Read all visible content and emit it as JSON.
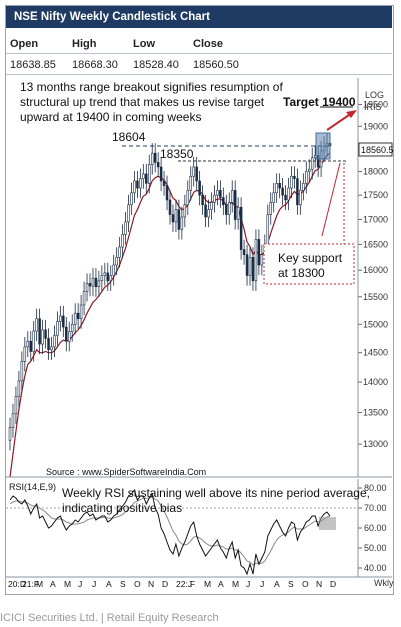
{
  "title": "NSE Nifty Weekly Candlestick Chart",
  "ohlc": {
    "headers": [
      "Open",
      "High",
      "Low",
      "Close"
    ],
    "values": [
      "18638.85",
      "18668.30",
      "18528.40",
      "18560.50"
    ]
  },
  "annotations": {
    "breakout_text": [
      "13 months range breakout signifies resumption of",
      "structural up trend that makes us revise target",
      "upward at 19400 in coming weeks"
    ],
    "target": "Target 19400",
    "level_18604": "18604",
    "level_18350": "18350",
    "key_support": [
      "Key   support",
      "at 18300"
    ],
    "source": "Source : www.SpiderSoftwareIndia.Com",
    "rsi_text": [
      "Weekly RSI sustaining well above its nine period average,",
      "indicating positive bias"
    ],
    "log": "LOG",
    "iris": "IRIS",
    "wk": "Wkly",
    "last_price": "18560.5"
  },
  "footer": "ICICI Securities Ltd. | Retail Equity Research",
  "chart_data": [
    {
      "type": "candlestick",
      "title": "NSE Nifty Weekly Candlestick Chart",
      "yscale": "log",
      "ylim": [
        12500,
        19700
      ],
      "y_ticks": [
        13000,
        13500,
        14000,
        14500,
        15000,
        15500,
        16000,
        16500,
        17000,
        17500,
        18000,
        18500,
        19000,
        19500
      ],
      "x_tick_labels": [
        "20:D",
        "21:F",
        "M",
        "A",
        "M",
        "J",
        "J",
        "A",
        "S",
        "O",
        "N",
        "D",
        "22:J",
        "F",
        "M",
        "A",
        "M",
        "J",
        "J",
        "A",
        "S",
        "O",
        "N",
        "D"
      ],
      "series": [
        {
          "name": "Nifty",
          "values": [
            13260,
            13480,
            13760,
            14020,
            14350,
            14600,
            14700,
            14520,
            14880,
            15100,
            14650,
            14900,
            14750,
            14550,
            14600,
            14800,
            15050,
            15150,
            14950,
            14700,
            14870,
            15000,
            15200,
            15100,
            15350,
            15600,
            15750,
            15700,
            15850,
            15690,
            15800,
            15900,
            15950,
            15800,
            15900,
            16100,
            16250,
            16450,
            16700,
            16950,
            17300,
            17550,
            17800,
            17650,
            17850,
            17950,
            17750,
            18150,
            18400,
            18200,
            18100,
            17800,
            17700,
            17400,
            17100,
            16950,
            17200,
            16800,
            17050,
            17300,
            17600,
            17900,
            18100,
            17800,
            17500,
            17300,
            17050,
            17200,
            17350,
            17500,
            17600,
            17450,
            17300,
            17100,
            17350,
            17600,
            17000,
            17250,
            16400,
            16300,
            15900,
            16250,
            15800,
            16600,
            16100,
            16300,
            16500,
            17100,
            17350,
            17550,
            17750,
            17650,
            17500,
            17400,
            17650,
            17900,
            17850,
            17300,
            17600,
            17750,
            18000,
            18050,
            18300,
            18350,
            18100,
            18450,
            18550,
            18620,
            18560
          ]
        },
        {
          "name": "Moving average",
          "values": [
            12500,
            12850,
            13200,
            13550,
            13850,
            14100,
            14300,
            14350,
            14450,
            14550,
            14500,
            14500,
            14520,
            14500,
            14500,
            14530,
            14600,
            14680,
            14720,
            14700,
            14720,
            14780,
            14850,
            14900,
            14980,
            15080,
            15200,
            15300,
            15400,
            15450,
            15520,
            15600,
            15680,
            15720,
            15780,
            15870,
            15980,
            16100,
            16260,
            16430,
            16640,
            16860,
            17080,
            17200,
            17350,
            17480,
            17520,
            17650,
            17800,
            17870,
            17900,
            17870,
            17820,
            17720,
            17580,
            17440,
            17390,
            17260,
            17200,
            17220,
            17300,
            17420,
            17560,
            17600,
            17580,
            17520,
            17400,
            17350,
            17350,
            17380,
            17420,
            17420,
            17380,
            17300,
            17300,
            17360,
            17260,
            17260,
            17020,
            16800,
            16550,
            16460,
            16300,
            16380,
            16300,
            16300,
            16350,
            16530,
            16720,
            16900,
            17070,
            17200,
            17270,
            17300,
            17380,
            17500,
            17580,
            17510,
            17530,
            17580,
            17680,
            17770,
            17900,
            18020,
            18050,
            18150,
            18250,
            18350,
            18400
          ]
        }
      ]
    },
    {
      "type": "line",
      "title": "RSI(14,E,9)",
      "ylim": [
        36,
        84
      ],
      "y_ticks": [
        40,
        50,
        60,
        70,
        80
      ],
      "series": [
        {
          "name": "RSI",
          "values": [
            74,
            76,
            75,
            73,
            72,
            74,
            71,
            67,
            70,
            72,
            65,
            66,
            63,
            60,
            61,
            63,
            65,
            66,
            62,
            59,
            61,
            62,
            64,
            63,
            65,
            67,
            68,
            66,
            67,
            64,
            65,
            66,
            66,
            63,
            64,
            66,
            67,
            69,
            71,
            73,
            76,
            77,
            79,
            74,
            76,
            76,
            72,
            75,
            77,
            70,
            67,
            60,
            57,
            53,
            49,
            47,
            52,
            46,
            50,
            53,
            57,
            61,
            63,
            56,
            52,
            49,
            46,
            48,
            50,
            52,
            54,
            50,
            48,
            45,
            50,
            53,
            45,
            49,
            41,
            40,
            37,
            42,
            37,
            47,
            42,
            45,
            48,
            56,
            59,
            62,
            64,
            61,
            58,
            56,
            60,
            63,
            62,
            54,
            58,
            60,
            63,
            64,
            66,
            66,
            61,
            65,
            67,
            68,
            66
          ]
        },
        {
          "name": "RSI average",
          "values": [
            72,
            73,
            73.5,
            73.5,
            73,
            73,
            72.5,
            71.5,
            71,
            71,
            70,
            69,
            68,
            66.5,
            65,
            64.5,
            64.5,
            64.5,
            64,
            63,
            62.5,
            62,
            62,
            62,
            62.5,
            63,
            64,
            64.5,
            65,
            65,
            65,
            65.2,
            65.4,
            65,
            64.8,
            65,
            65.5,
            66,
            66.8,
            68,
            69.5,
            71,
            72.8,
            73.5,
            74.2,
            75,
            74.8,
            75,
            75.5,
            74.5,
            73.5,
            71,
            68.5,
            65.5,
            62,
            58.5,
            56.5,
            53.5,
            52,
            51.5,
            52,
            53.5,
            55.5,
            55.7,
            55,
            54,
            52.5,
            51.5,
            51,
            51,
            51.5,
            51,
            50.5,
            49.5,
            49.5,
            50,
            49,
            49,
            47.5,
            45.5,
            43.5,
            43,
            41.5,
            42.5,
            42,
            42.5,
            43.5,
            46,
            48.5,
            51.5,
            54,
            55.5,
            56.5,
            57,
            58,
            59.5,
            60.5,
            59.5,
            59.5,
            59.5,
            60.5,
            61.5,
            62.5,
            63.5,
            63,
            63.5,
            64.5,
            65.5,
            66
          ]
        }
      ]
    }
  ],
  "colors": {
    "title_bg": "#1f3b63",
    "up_candle": "#ffffff",
    "down_candle": "#1a2b44",
    "moving_average": "#8b1c24",
    "target_arrow": "#c0282d",
    "rsi_line": "#111111",
    "rsi_avg": "#8a8a8a"
  }
}
